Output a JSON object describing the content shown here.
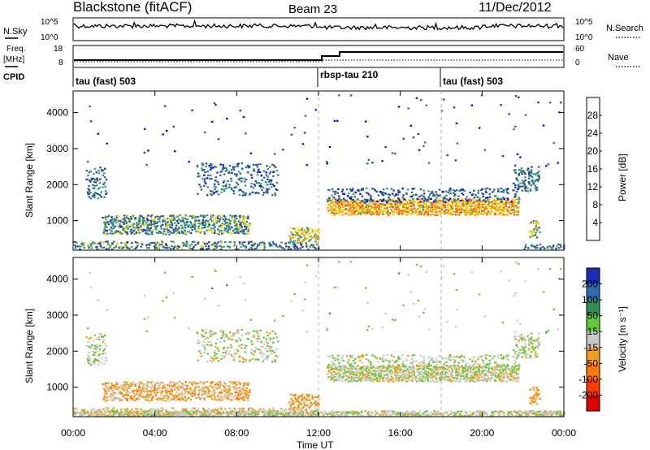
{
  "header": {
    "station": "Blackstone (fitACF)",
    "beam": "Beam 23",
    "date": "11/Dec/2012"
  },
  "left_labels": {
    "nsky": "N.Sky",
    "freq_line1": "Freq.",
    "freq_line2": "[MHz]",
    "cpid": "CPID"
  },
  "right_labels": {
    "nsearch": "N.Search",
    "nave": "Nave"
  },
  "noise_axis": {
    "left_ticks": [
      "10^5",
      "10^0"
    ],
    "right_ticks": [
      "10^5",
      "10^0"
    ]
  },
  "freq_axis": {
    "left_ticks": [
      "18",
      "8"
    ],
    "right_ticks": [
      "60",
      "0"
    ]
  },
  "cpid_segments": [
    {
      "start_hour": 0.0,
      "label": "tau (fast) 503"
    },
    {
      "start_hour": 12.0,
      "label": "rbsp-tau 210"
    },
    {
      "start_hour": 18.0,
      "label": "tau (fast) 503"
    }
  ],
  "x_axis": {
    "label": "Time UT",
    "range_hours": [
      0,
      24
    ],
    "ticks": [
      "00:00",
      "04:00",
      "08:00",
      "12:00",
      "16:00",
      "20:00",
      "00:00"
    ]
  },
  "y_axis": {
    "label": "Slant Range [km]",
    "range_km": [
      180,
      4600
    ],
    "ticks": [
      "1000",
      "2000",
      "3000",
      "4000"
    ]
  },
  "power_colorbar": {
    "label": "Power [dB]",
    "ticks": [
      "4",
      "8",
      "12",
      "16",
      "20",
      "24",
      "28"
    ],
    "colors": [
      "#0000ff",
      "#1f3f9c",
      "#2f6e8e",
      "#3a9a6a",
      "#f0d000",
      "#ff9a00",
      "#ff5a00",
      "#ff0000"
    ]
  },
  "velocity_colorbar": {
    "label": "Velocity [m s⁻¹]",
    "ticks": [
      "200",
      "100",
      "50",
      "15",
      "-15",
      "-50",
      "-100",
      "-200"
    ],
    "colors": [
      "#1a2fb5",
      "#2f6bb0",
      "#2e8f4f",
      "#63c83a",
      "#c8c8c8",
      "#f0a020",
      "#ff7a00",
      "#ff3a00",
      "#e00000"
    ]
  },
  "chart_data": {
    "type": "heatmap",
    "title": "Blackstone (fitACF)  Beam 23  11/Dec/2012",
    "xlabel": "Time UT",
    "ylabel": "Slant Range [km]",
    "xlim_hours": [
      0,
      24
    ],
    "ylim_km": [
      180,
      4600
    ],
    "panels": [
      "Power [dB]",
      "Velocity [m s⁻¹]"
    ],
    "scatter_regions": [
      {
        "t0": 1.4,
        "t1": 8.6,
        "r0": 620,
        "r1": 1150,
        "power_db": 12,
        "velocity": -30,
        "density": 0.75
      },
      {
        "t0": 0.6,
        "t1": 1.6,
        "r0": 1600,
        "r1": 2500,
        "power_db": 10,
        "velocity": 10,
        "density": 0.35
      },
      {
        "t0": 6.0,
        "t1": 10.0,
        "r0": 1700,
        "r1": 2600,
        "power_db": 9,
        "velocity": 5,
        "density": 0.3
      },
      {
        "t0": 0.0,
        "t1": 12.0,
        "r0": 200,
        "r1": 420,
        "power_db": 11,
        "velocity": -25,
        "density": 0.55
      },
      {
        "t0": 10.5,
        "t1": 12.0,
        "r0": 400,
        "r1": 800,
        "power_db": 18,
        "velocity": -40,
        "density": 0.6
      },
      {
        "t0": 12.4,
        "t1": 21.8,
        "r0": 1150,
        "r1": 1600,
        "power_db": 21,
        "velocity": 0,
        "density": 0.9
      },
      {
        "t0": 12.4,
        "t1": 21.8,
        "r0": 1500,
        "r1": 1900,
        "power_db": 8,
        "velocity": 10,
        "density": 0.35
      },
      {
        "t0": 22.3,
        "t1": 22.8,
        "r0": 500,
        "r1": 1000,
        "power_db": 17,
        "velocity": -40,
        "density": 0.6
      },
      {
        "t0": 21.5,
        "t1": 22.8,
        "r0": 1800,
        "r1": 2500,
        "power_db": 10,
        "velocity": 10,
        "density": 0.45
      },
      {
        "t0": 22.0,
        "t1": 24.0,
        "r0": 200,
        "r1": 350,
        "power_db": 10,
        "velocity": 10,
        "density": 0.5
      },
      {
        "t0": 0.0,
        "t1": 24.0,
        "r0": 2500,
        "r1": 4500,
        "power_db": 6,
        "velocity": 20,
        "density": 0.01
      }
    ]
  }
}
